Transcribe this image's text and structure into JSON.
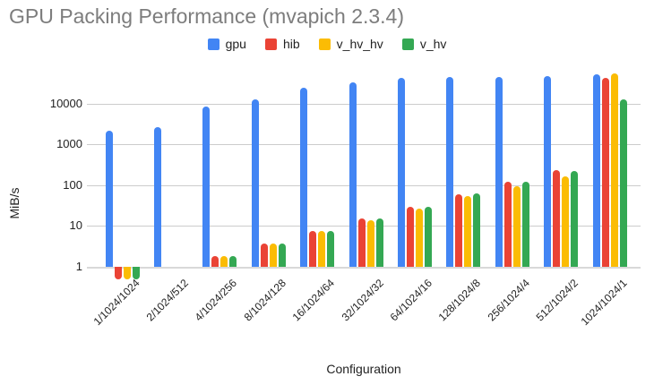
{
  "chart_data": {
    "type": "bar",
    "title": "GPU Packing Performance (mvapich 2.3.4)",
    "xlabel": "Configuration",
    "ylabel": "MiB/s",
    "y_scale": "log",
    "y_ticks": [
      1,
      10,
      100,
      1000,
      10000
    ],
    "ylim": [
      0.5,
      60000
    ],
    "grid": true,
    "legend_position": "top",
    "categories": [
      "1/1024/1024",
      "2/1024/512",
      "4/1024/256",
      "8/1024/128",
      "16/1024/64",
      "32/1024/32",
      "64/1024/16",
      "128/1024/8",
      "256/1024/4",
      "512/1024/2",
      "1024/1024/1"
    ],
    "series": [
      {
        "name": "gpu",
        "color": "#4285F4",
        "values": [
          2200,
          2700,
          8400,
          13000,
          24000,
          34000,
          42000,
          45000,
          45000,
          47000,
          52000
        ]
      },
      {
        "name": "hib",
        "color": "#EA4335",
        "values": [
          0.5,
          1,
          1.8,
          3.7,
          7.4,
          15,
          30,
          61,
          120,
          240,
          42000
        ]
      },
      {
        "name": "v_hv_hv",
        "color": "#FBBC04",
        "values": [
          0.5,
          1,
          1.8,
          3.7,
          7.4,
          14,
          27,
          54,
          96,
          165,
          56000
        ]
      },
      {
        "name": "v_hv",
        "color": "#34A853",
        "values": [
          0.5,
          1,
          1.8,
          3.7,
          7.4,
          15,
          30,
          63,
          124,
          225,
          13000
        ]
      }
    ]
  }
}
